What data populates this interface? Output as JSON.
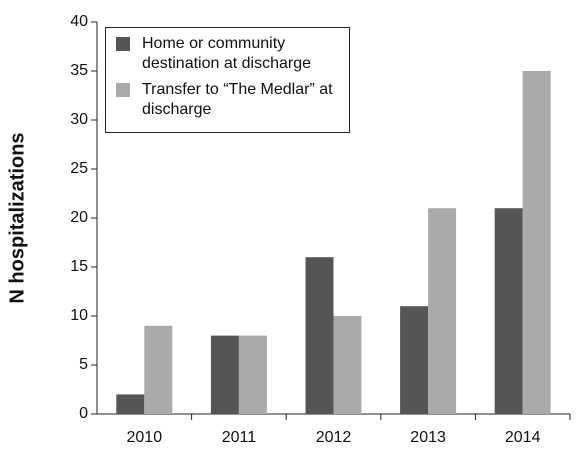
{
  "chart_data": {
    "type": "bar",
    "y_label": "N hospitalizations",
    "categories": [
      "2010",
      "2011",
      "2012",
      "2013",
      "2014"
    ],
    "series": [
      {
        "name": "Home or community destination at discharge",
        "color": "#555555",
        "values": [
          2,
          8,
          16,
          11,
          21
        ]
      },
      {
        "name": "Transfer to “The Medlar” at discharge",
        "color": "#aaaaaa",
        "values": [
          9,
          8,
          10,
          21,
          35
        ]
      }
    ],
    "ylim": [
      0,
      40
    ],
    "yticks": [
      0,
      5,
      10,
      15,
      20,
      25,
      30,
      35,
      40
    ],
    "grid": false,
    "legend": "upper left"
  }
}
